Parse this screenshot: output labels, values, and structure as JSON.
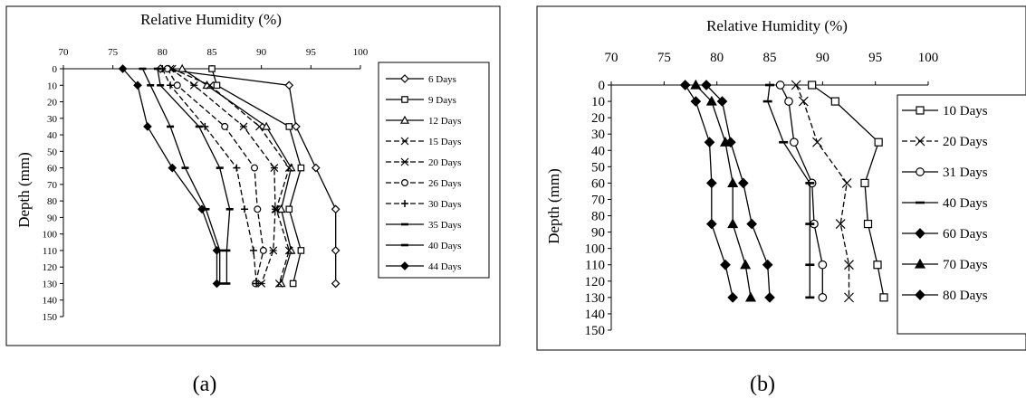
{
  "chart_data": [
    {
      "type": "line",
      "panel": "(a)",
      "xlabel": "Relative Humidity (%)",
      "ylabel": "Depth (mm)",
      "xlim": [
        70,
        100
      ],
      "ylim": [
        0,
        150
      ],
      "x_ticks": [
        70,
        75,
        80,
        85,
        90,
        95,
        100
      ],
      "y_ticks": [
        0,
        10,
        20,
        30,
        40,
        50,
        60,
        70,
        80,
        90,
        100,
        110,
        120,
        130,
        140,
        150
      ],
      "x_axis_position": "top",
      "y_axis_inverted": true,
      "grid": false,
      "legend_position": "right",
      "series": [
        {
          "name": "6 Days",
          "marker": "diamond-open",
          "dash": "solid",
          "points": [
            [
              79.8,
              0
            ],
            [
              92.8,
              10
            ],
            [
              93.5,
              35
            ],
            [
              95.5,
              60
            ],
            [
              97.5,
              85
            ],
            [
              97.5,
              110
            ],
            [
              97.5,
              130
            ]
          ]
        },
        {
          "name": "9 Days",
          "marker": "square-open",
          "dash": "solid",
          "points": [
            [
              85,
              0
            ],
            [
              85.5,
              10
            ],
            [
              92.8,
              35
            ],
            [
              94,
              60
            ],
            [
              92.8,
              85
            ],
            [
              94,
              110
            ],
            [
              93.2,
              130
            ]
          ]
        },
        {
          "name": "12 Days",
          "marker": "triangle-open",
          "dash": "solid",
          "points": [
            [
              82,
              0
            ],
            [
              84.5,
              10
            ],
            [
              90.5,
              35
            ],
            [
              93,
              60
            ],
            [
              92,
              85
            ],
            [
              93,
              110
            ],
            [
              92,
              130
            ]
          ]
        },
        {
          "name": "15 Days",
          "marker": "x",
          "dash": "dash",
          "points": [
            [
              81,
              0
            ],
            [
              84.8,
              10
            ],
            [
              89.8,
              35
            ],
            [
              92.8,
              60
            ],
            [
              91.5,
              85
            ],
            [
              92.8,
              110
            ],
            [
              91.8,
              130
            ]
          ]
        },
        {
          "name": "20 Days",
          "marker": "star",
          "dash": "dash",
          "points": [
            [
              80.8,
              0
            ],
            [
              83.2,
              10
            ],
            [
              88.2,
              35
            ],
            [
              91.3,
              60
            ],
            [
              91.4,
              85
            ],
            [
              91.2,
              110
            ],
            [
              90,
              130
            ]
          ]
        },
        {
          "name": "26 Days",
          "marker": "circle-open",
          "dash": "dash",
          "points": [
            [
              80.5,
              0
            ],
            [
              81.5,
              10
            ],
            [
              86.3,
              35
            ],
            [
              89.3,
              60
            ],
            [
              89.6,
              85
            ],
            [
              90.2,
              110
            ],
            [
              89.4,
              130
            ]
          ]
        },
        {
          "name": "30 Days",
          "marker": "plus",
          "dash": "dash",
          "points": [
            [
              80,
              0
            ],
            [
              80.8,
              10
            ],
            [
              84.3,
              35
            ],
            [
              87.5,
              60
            ],
            [
              88.3,
              85
            ],
            [
              89.2,
              110
            ],
            [
              89.5,
              130
            ]
          ]
        },
        {
          "name": "35 Days",
          "marker": "dash",
          "dash": "solid",
          "points": [
            [
              79.5,
              0
            ],
            [
              79.8,
              10
            ],
            [
              83.7,
              35
            ],
            [
              85.8,
              60
            ],
            [
              86.8,
              85
            ],
            [
              86.5,
              110
            ],
            [
              86.5,
              130
            ]
          ]
        },
        {
          "name": "40 Days",
          "marker": "dash",
          "dash": "solid",
          "points": [
            [
              78,
              0
            ],
            [
              78.8,
              10
            ],
            [
              80.8,
              35
            ],
            [
              82.3,
              60
            ],
            [
              84.4,
              85
            ],
            [
              85.8,
              110
            ],
            [
              85.8,
              130
            ]
          ]
        },
        {
          "name": "44 Days",
          "marker": "diamond-filled",
          "dash": "solid",
          "points": [
            [
              76,
              0
            ],
            [
              77.5,
              10
            ],
            [
              78.5,
              35
            ],
            [
              81,
              60
            ],
            [
              84,
              85
            ],
            [
              85.5,
              110
            ],
            [
              85.5,
              130
            ]
          ]
        }
      ]
    },
    {
      "type": "line",
      "panel": "(b)",
      "xlabel": "Relative Humidity (%)",
      "ylabel": "Depth (mm)",
      "xlim": [
        70,
        100
      ],
      "ylim": [
        0,
        150
      ],
      "x_ticks": [
        70,
        75,
        80,
        85,
        90,
        95,
        100
      ],
      "y_ticks": [
        0,
        10,
        20,
        30,
        40,
        50,
        60,
        70,
        80,
        90,
        100,
        110,
        120,
        130,
        140,
        150
      ],
      "x_axis_position": "top",
      "y_axis_inverted": true,
      "grid": false,
      "legend_position": "right",
      "series": [
        {
          "name": "10 Days",
          "marker": "square-open",
          "dash": "solid",
          "points": [
            [
              89,
              0
            ],
            [
              91.2,
              10
            ],
            [
              95.3,
              35
            ],
            [
              94,
              60
            ],
            [
              94.3,
              85
            ],
            [
              95.2,
              110
            ],
            [
              95.8,
              130
            ]
          ]
        },
        {
          "name": "20 Days",
          "marker": "x",
          "dash": "dash",
          "points": [
            [
              87.5,
              0
            ],
            [
              88.2,
              10
            ],
            [
              89.5,
              35
            ],
            [
              92.3,
              60
            ],
            [
              91.7,
              85
            ],
            [
              92.5,
              110
            ],
            [
              92.5,
              130
            ]
          ]
        },
        {
          "name": "31 Days",
          "marker": "circle-open",
          "dash": "solid",
          "points": [
            [
              86,
              0
            ],
            [
              86.8,
              10
            ],
            [
              87.3,
              35
            ],
            [
              89,
              60
            ],
            [
              89.2,
              85
            ],
            [
              90,
              110
            ],
            [
              90,
              130
            ]
          ]
        },
        {
          "name": "40 Days",
          "marker": "dash",
          "dash": "solid",
          "points": [
            [
              85,
              0
            ],
            [
              84.8,
              10
            ],
            [
              86.3,
              35
            ],
            [
              88.8,
              60
            ],
            [
              88.8,
              85
            ],
            [
              88.8,
              110
            ],
            [
              88.8,
              130
            ]
          ]
        },
        {
          "name": "60 Days",
          "marker": "diamond-filled",
          "dash": "solid",
          "points": [
            [
              79,
              0
            ],
            [
              80.5,
              10
            ],
            [
              81.3,
              35
            ],
            [
              82.5,
              60
            ],
            [
              83.3,
              85
            ],
            [
              84.8,
              110
            ],
            [
              85,
              130
            ]
          ]
        },
        {
          "name": "70 Days",
          "marker": "triangle-filled",
          "dash": "solid",
          "points": [
            [
              78,
              0
            ],
            [
              79.5,
              10
            ],
            [
              80.8,
              35
            ],
            [
              81.5,
              60
            ],
            [
              81.5,
              85
            ],
            [
              82.7,
              110
            ],
            [
              83.2,
              130
            ]
          ]
        },
        {
          "name": "80 Days",
          "marker": "diamond-filled",
          "dash": "solid",
          "points": [
            [
              77,
              0
            ],
            [
              78,
              10
            ],
            [
              79.3,
              35
            ],
            [
              79.5,
              60
            ],
            [
              79.5,
              85
            ],
            [
              80.8,
              110
            ],
            [
              81.5,
              130
            ]
          ]
        }
      ]
    }
  ],
  "captions": [
    "(a)",
    "(b)"
  ]
}
